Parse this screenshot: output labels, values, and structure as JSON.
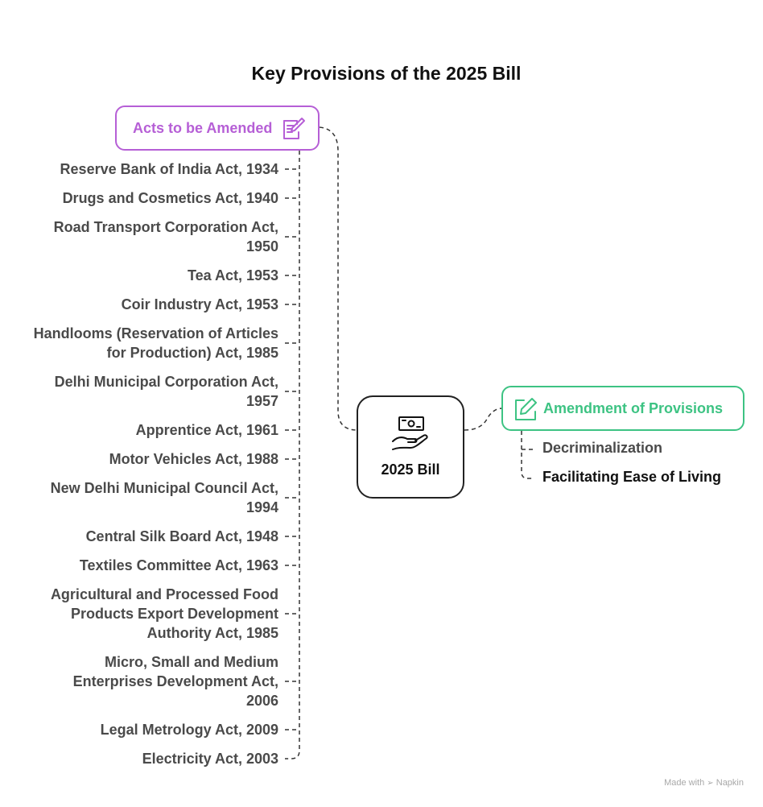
{
  "title": "Key Provisions of the 2025 Bill",
  "center": {
    "label": "2025 Bill",
    "icon": "money-in-hand-icon"
  },
  "left_branch": {
    "label": "Acts to be Amended",
    "icon": "edit-note-icon",
    "color": "#b65fd6",
    "items": [
      {
        "text": "Reserve Bank of India Act, 1934"
      },
      {
        "text": "Drugs and Cosmetics Act, 1940"
      },
      {
        "text": "Road Transport Corporation Act, 1950"
      },
      {
        "text": "Tea Act, 1953"
      },
      {
        "text": "Coir Industry Act, 1953"
      },
      {
        "text": "Handlooms (Reservation of Articles for Production) Act, 1985"
      },
      {
        "text": "Delhi Municipal Corporation Act, 1957"
      },
      {
        "text": "Apprentice Act, 1961"
      },
      {
        "text": "Motor Vehicles Act, 1988"
      },
      {
        "text": "New Delhi Municipal Council Act, 1994"
      },
      {
        "text": "Central Silk Board Act, 1948"
      },
      {
        "text": "Textiles Committee Act, 1963"
      },
      {
        "text": "Agricultural and Processed Food Products Export Development Authority Act, 1985"
      },
      {
        "text": "Micro, Small and Medium Enterprises Development Act, 2006"
      },
      {
        "text": "Legal Metrology Act, 2009"
      },
      {
        "text": "Electricity Act, 2003"
      }
    ]
  },
  "right_branch": {
    "label": "Amendment of Provisions",
    "icon": "edit-square-icon",
    "color": "#3dc383",
    "items": [
      {
        "text": "Decriminalization"
      },
      {
        "text": "Facilitating Ease of Living"
      }
    ]
  },
  "footer": {
    "made_with": "Made with",
    "brand": "Napkin"
  }
}
